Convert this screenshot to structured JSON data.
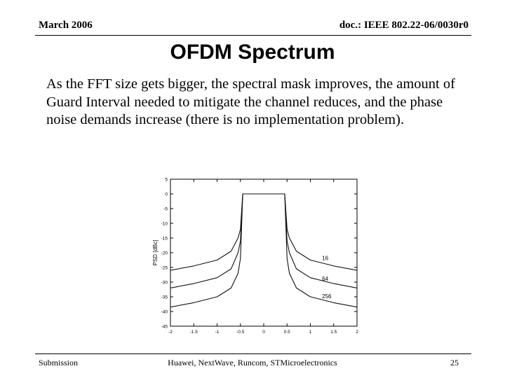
{
  "header": {
    "date": "March 2006",
    "doc_id": "doc.: IEEE 802.22-06/0030r0"
  },
  "slide": {
    "title": "OFDM Spectrum",
    "body": "As the FFT size gets bigger, the spectral mask improves, the amount of Guard Interval needed to mitigate the channel reduces, and the phase noise demands increase (there is no implementation problem)."
  },
  "footer": {
    "left": "Submission",
    "center": "Huawei, NextWave, Runcom, STMicroelectronics",
    "page": "25"
  },
  "chart_data": {
    "type": "line",
    "title": "",
    "xlabel": "",
    "ylabel": "PSD [dBc]",
    "xlim": [
      -2,
      2
    ],
    "ylim": [
      -45,
      5
    ],
    "grid": false,
    "xticks": [
      "-2",
      "-1.5",
      "-1",
      "-0.5",
      "0",
      "0.5",
      "1",
      "1.5",
      "2"
    ],
    "yticks": [
      "5",
      "0",
      "-5",
      "-10",
      "-15",
      "-20",
      "-25",
      "-30",
      "-35",
      "-40",
      "-45"
    ],
    "series": [
      {
        "name": "16",
        "x": [
          -2,
          -1.5,
          -1,
          -0.7,
          -0.55,
          -0.5,
          -0.45,
          0,
          0.45,
          0.5,
          0.55,
          0.7,
          1,
          1.5,
          2
        ],
        "y": [
          -26,
          -24.5,
          -22.5,
          -19.5,
          -15,
          -12,
          0,
          0,
          0,
          -12,
          -15,
          -19.5,
          -22.5,
          -24.5,
          -26
        ]
      },
      {
        "name": "64",
        "x": [
          -2,
          -1.5,
          -1,
          -0.7,
          -0.55,
          -0.5,
          -0.45,
          0,
          0.45,
          0.5,
          0.55,
          0.7,
          1,
          1.5,
          2
        ],
        "y": [
          -32,
          -30.5,
          -28.5,
          -25.5,
          -20,
          -16,
          0,
          0,
          0,
          -16,
          -20,
          -25.5,
          -28.5,
          -30.5,
          -32
        ]
      },
      {
        "name": "256",
        "x": [
          -2,
          -1.5,
          -1,
          -0.7,
          -0.55,
          -0.5,
          -0.45,
          0,
          0.45,
          0.5,
          0.55,
          0.7,
          1,
          1.5,
          2
        ],
        "y": [
          -38.5,
          -37,
          -35,
          -32,
          -27,
          -22,
          0,
          0,
          0,
          -22,
          -27,
          -32,
          -35,
          -37,
          -38.5
        ]
      }
    ],
    "annotations": [
      "16",
      "64",
      "256"
    ]
  }
}
